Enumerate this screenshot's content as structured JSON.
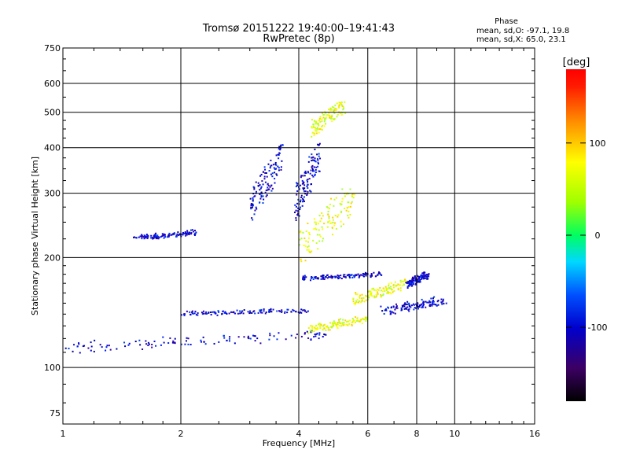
{
  "chart_data": {
    "type": "scatter",
    "title": "Tromsø 20151222 19:40:00–19:41:43",
    "subtitle": "RwPretec (8p)",
    "xlabel": "Frequency [MHz]",
    "ylabel": "Stationary phase Virtual Height [km]",
    "x_scale": "log",
    "y_scale": "log",
    "xlim": [
      1,
      16
    ],
    "ylim": [
      70,
      750
    ],
    "x_ticks": [
      1,
      2,
      4,
      6,
      8,
      10,
      16
    ],
    "x_tick_labels": [
      "1",
      "2",
      "4",
      "6",
      "8",
      "10",
      "16"
    ],
    "y_ticks": [
      75,
      100,
      200,
      300,
      400,
      500,
      600,
      750
    ],
    "y_tick_labels": [
      "75",
      "100",
      "200",
      "300",
      "400",
      "500",
      "600",
      "750"
    ],
    "grid": true,
    "phase_box": {
      "heading": "Phase",
      "line_o": "mean, sd,O: -97.1, 19.8",
      "line_x": "mean, sd,X:  65.0, 23.1"
    },
    "colorbar": {
      "label": "[deg]",
      "range": [
        -180,
        180
      ],
      "tick_values": [
        100,
        0,
        -100
      ],
      "tick_labels": [
        "100",
        "0",
        "-100"
      ]
    },
    "series": [
      {
        "mode": "O",
        "phase_mean": -97.1,
        "phase_sd": 19.8,
        "traces": [
          {
            "f": [
              1.0,
              4.8
            ],
            "h": [
              110,
              128
            ]
          },
          {
            "f": [
              1.5,
              2.2
            ],
            "h": [
              225,
              238
            ]
          },
          {
            "f": [
              3.0,
              3.6
            ],
            "h": [
              250,
              420
            ]
          },
          {
            "f": [
              3.9,
              4.5
            ],
            "h": [
              250,
              430
            ]
          },
          {
            "f": [
              2.0,
              4.2
            ],
            "h": [
              140,
              145
            ]
          },
          {
            "f": [
              4.0,
              6.5
            ],
            "h": [
              175,
              182
            ]
          },
          {
            "f": [
              6.5,
              9.5
            ],
            "h": [
              140,
              158
            ]
          },
          {
            "f": [
              7.5,
              8.5
            ],
            "h": [
              165,
              185
            ]
          }
        ]
      },
      {
        "mode": "X",
        "phase_mean": 65.0,
        "phase_sd": 23.1,
        "traces": [
          {
            "f": [
              4.2,
              6.0
            ],
            "h": [
              125,
              140
            ]
          },
          {
            "f": [
              4.0,
              5.5
            ],
            "h": [
              190,
              330
            ]
          },
          {
            "f": [
              4.3,
              5.2
            ],
            "h": [
              430,
              550
            ]
          },
          {
            "f": [
              5.5,
              7.5
            ],
            "h": [
              150,
              175
            ]
          }
        ]
      }
    ]
  }
}
